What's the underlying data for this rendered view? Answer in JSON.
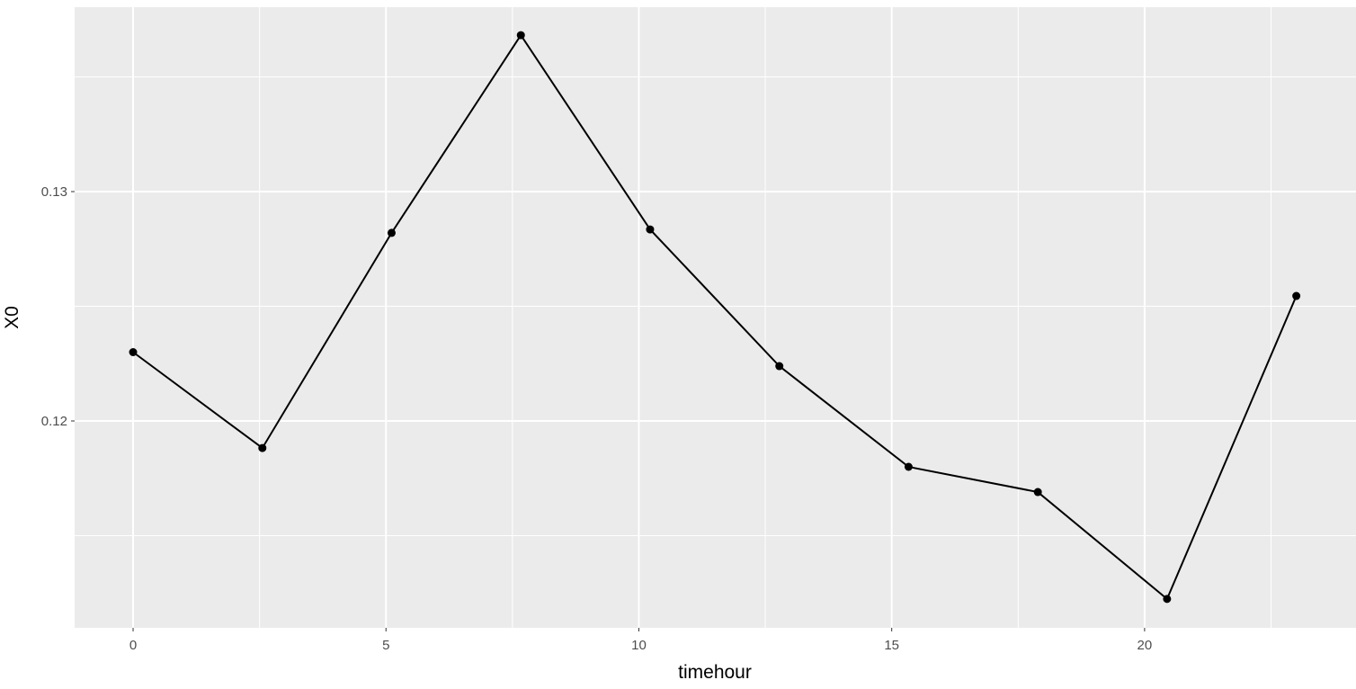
{
  "chart_data": {
    "type": "line",
    "x_label": "timehour",
    "y_label": "X0",
    "x": [
      0,
      2.556,
      5.111,
      7.667,
      10.222,
      12.778,
      15.333,
      17.889,
      20.444,
      23
    ],
    "values": [
      0.123,
      0.11882,
      0.1282,
      0.13682,
      0.12835,
      0.12239,
      0.118,
      0.1169,
      0.11224,
      0.12545
    ],
    "color": "#000000",
    "xlim": [
      -1.156,
      24.18
    ],
    "ylim": [
      0.11098,
      0.13804
    ],
    "xticks": [
      0,
      5,
      10,
      15,
      20
    ],
    "yticks": [
      0.12,
      0.13
    ],
    "grid": true,
    "minor_grid": true,
    "markers": true
  }
}
